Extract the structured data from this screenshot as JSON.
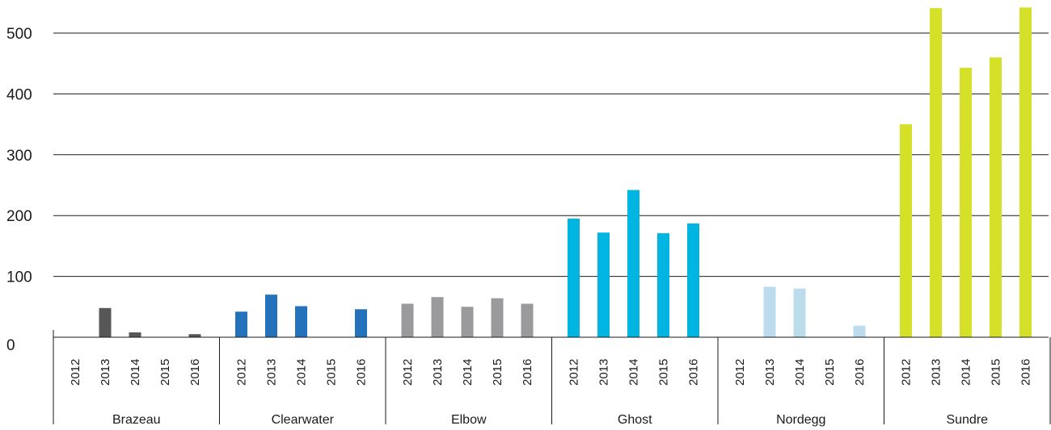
{
  "chart_data": {
    "type": "bar",
    "title": "",
    "xlabel": "",
    "ylabel": "",
    "ylim": [
      0,
      550
    ],
    "yticks": [
      0,
      100,
      200,
      300,
      400,
      500
    ],
    "grid": true,
    "years": [
      "2012",
      "2013",
      "2014",
      "2015",
      "2016"
    ],
    "groups": [
      {
        "name": "Brazeau",
        "color": "#575757",
        "values": [
          0,
          48,
          8,
          0,
          5
        ]
      },
      {
        "name": "Clearwater",
        "color": "#2472bc",
        "values": [
          42,
          70,
          51,
          0,
          46
        ]
      },
      {
        "name": "Elbow",
        "color": "#9a9a9c",
        "values": [
          55,
          66,
          50,
          64,
          55
        ]
      },
      {
        "name": "Ghost",
        "color": "#00b5e2",
        "values": [
          195,
          172,
          242,
          171,
          187
        ]
      },
      {
        "name": "Nordegg",
        "color": "#bcdcee",
        "values": [
          0,
          83,
          80,
          0,
          19
        ]
      },
      {
        "name": "Sundre",
        "color": "#d4e128",
        "values": [
          350,
          541,
          443,
          460,
          542
        ]
      }
    ]
  }
}
